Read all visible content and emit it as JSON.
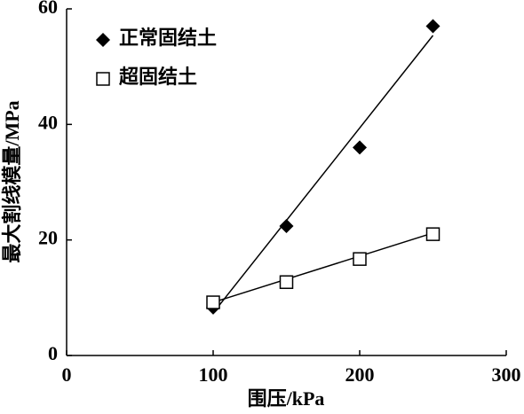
{
  "chart_data": {
    "type": "scatter",
    "x_label": "围压/kPa",
    "y_label": "最大割线模量/MPa",
    "xlim": [
      0,
      300
    ],
    "xticks": [
      0,
      100,
      200,
      300
    ],
    "ylim": [
      0,
      60
    ],
    "yticks": [
      0,
      20,
      40,
      60
    ],
    "legend": "upper left",
    "series": [
      {
        "name": "正常固结土",
        "marker": "diamond",
        "color": "#000000",
        "x": [
          100,
          150,
          200,
          250
        ],
        "values": [
          8.3,
          22.4,
          36.0,
          57.0
        ]
      },
      {
        "name": "超固结土",
        "marker": "square",
        "color": "#000000",
        "x": [
          100,
          150,
          200,
          250
        ],
        "values": [
          9.2,
          12.7,
          16.7,
          21.0
        ]
      }
    ],
    "fit_lines": [
      {
        "color": "#000000",
        "x": [
          102,
          250
        ],
        "values": [
          8.0,
          55.4
        ]
      },
      {
        "color": "#000000",
        "x": [
          100,
          250
        ],
        "values": [
          9.2,
          21.2
        ]
      }
    ]
  }
}
